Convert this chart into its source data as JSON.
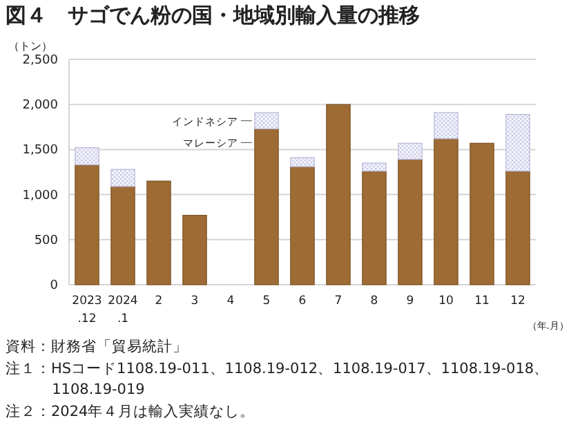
{
  "chart_data": {
    "type": "bar",
    "title": "図４　サゴでん粉の国・地域別輸入量の推移",
    "ylabel": "（トン）",
    "xlabel": "（年.月）",
    "stacked": true,
    "grid": "y",
    "categories": [
      "2023.12",
      "2024.1",
      "2",
      "3",
      "4",
      "5",
      "6",
      "7",
      "8",
      "9",
      "10",
      "11",
      "12"
    ],
    "series": [
      {
        "name": "マレーシア",
        "color": "#9e6b34",
        "values": [
          1330,
          1090,
          1150,
          770,
          null,
          1730,
          1310,
          2000,
          1260,
          1390,
          1620,
          1570,
          1260
        ]
      },
      {
        "name": "インドネシア",
        "color": "#c8c8e6",
        "values": [
          190,
          190,
          null,
          null,
          null,
          180,
          100,
          null,
          90,
          180,
          290,
          null,
          630
        ]
      }
    ],
    "ylim": [
      0,
      2500
    ],
    "yticks": [
      0,
      500,
      {
        "value": 1000,
        "label": "1,000"
      },
      {
        "value": 1500,
        "label": "1,500"
      },
      {
        "value": 2000,
        "label": "2,000"
      },
      {
        "value": 2500,
        "label": "2,500"
      }
    ],
    "annotations": [
      "資料：財務省「貿易統計」",
      "注１：HSコード1108.19-011、1108.19-012、1108.19-017、1108.19-018、1108.19-019",
      "注２：2024年４月は輸入実績なし。"
    ]
  }
}
